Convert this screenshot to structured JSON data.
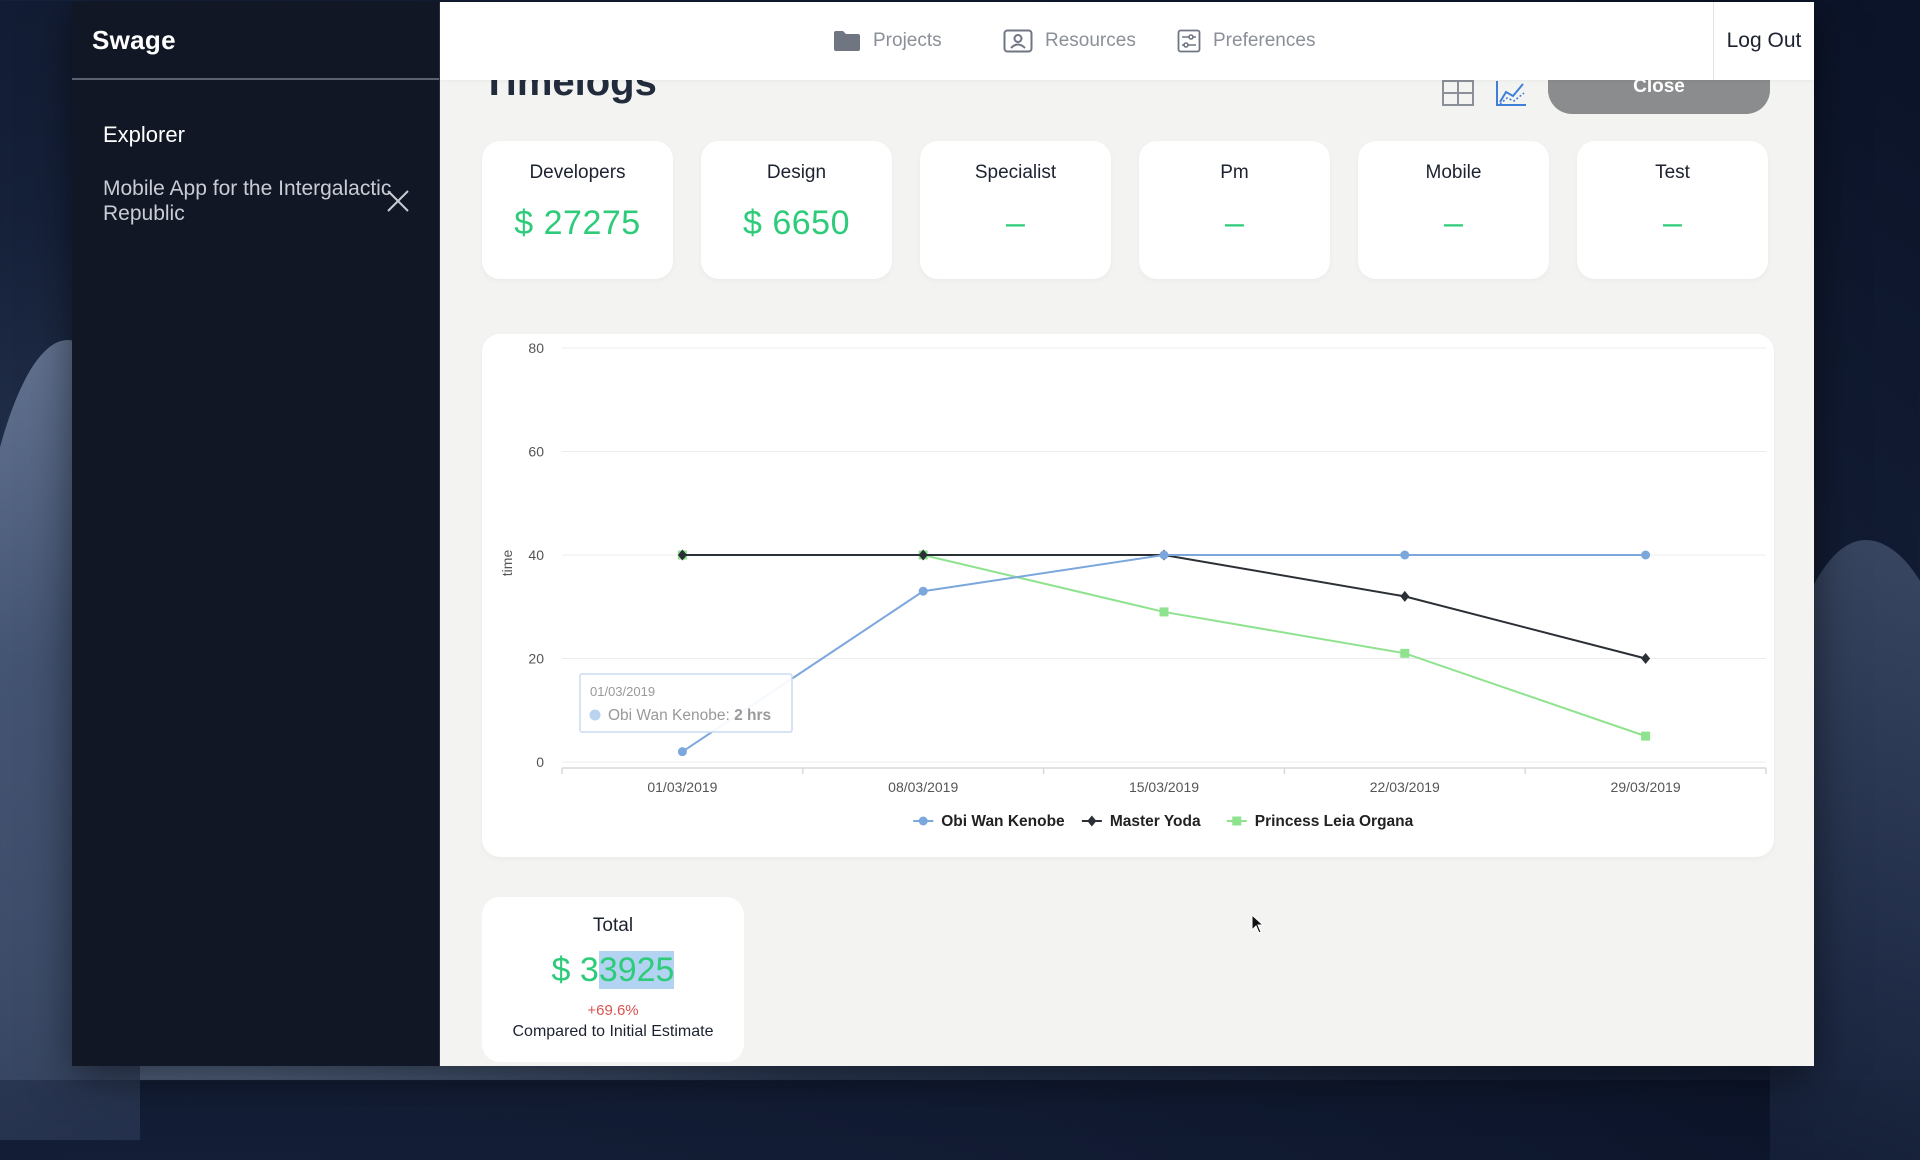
{
  "app": {
    "brand": "Swage"
  },
  "sidebar": {
    "section_title": "Explorer",
    "project_name": "Mobile App for the Intergalactic Republic"
  },
  "nav": {
    "projects": "Projects",
    "resources": "Resources",
    "preferences": "Preferences",
    "logout": "Log Out"
  },
  "page": {
    "title": "Timelogs",
    "close_label": "Close"
  },
  "cards": [
    {
      "label": "Developers",
      "value": "$ 27275"
    },
    {
      "label": "Design",
      "value": "$ 6650"
    },
    {
      "label": "Specialist",
      "value": "–"
    },
    {
      "label": "Pm",
      "value": "–"
    },
    {
      "label": "Mobile",
      "value": "–"
    },
    {
      "label": "Test",
      "value": "–"
    }
  ],
  "total": {
    "label": "Total",
    "prefix": "$ 3",
    "highlighted": "3925",
    "change": "+69.6%",
    "caption": "Compared to Initial Estimate"
  },
  "colors": {
    "accent_green": "#2ecc7a",
    "series_blue": "#7ba7dd",
    "series_dark": "#2b2f36",
    "series_green": "#8fe38f",
    "negative": "#d9534f"
  },
  "chart_data": {
    "type": "line",
    "ylabel": "time",
    "xlabel": "",
    "ylim": [
      0,
      80
    ],
    "yticks": [
      0,
      20,
      40,
      60,
      80
    ],
    "categories": [
      "01/03/2019",
      "08/03/2019",
      "15/03/2019",
      "22/03/2019",
      "29/03/2019"
    ],
    "series": [
      {
        "name": "Obi Wan Kenobe",
        "marker": "circle",
        "color": "#7ba7dd",
        "values": [
          2,
          33,
          40,
          40,
          40
        ]
      },
      {
        "name": "Master Yoda",
        "marker": "diamond",
        "color": "#2b2f36",
        "values": [
          40,
          40,
          40,
          32,
          20
        ]
      },
      {
        "name": "Princess Leia Organa",
        "marker": "square",
        "color": "#8fe38f",
        "values": [
          40,
          40,
          29,
          21,
          5
        ]
      }
    ],
    "legend": "bottom-center",
    "grid": true,
    "tooltip": {
      "date": "01/03/2019",
      "series": "Obi Wan Kenobe",
      "value_text": "2 hrs"
    }
  }
}
